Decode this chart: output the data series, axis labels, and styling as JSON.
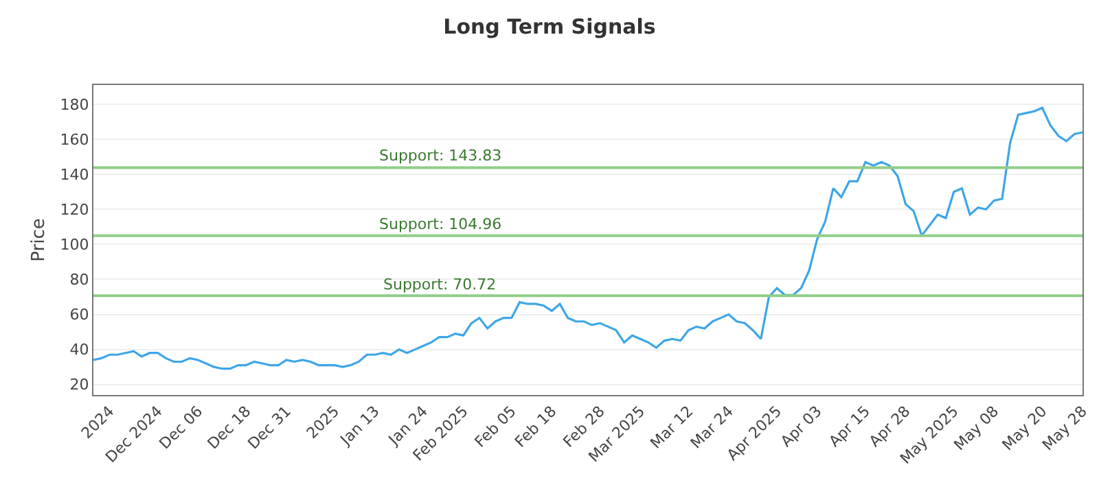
{
  "chart_data": {
    "type": "line",
    "title": "Long Term Signals",
    "ylabel": "Price",
    "categories": [
      null,
      null,
      "2024",
      null,
      null,
      null,
      null,
      null,
      "Dec 2024",
      null,
      null,
      null,
      null,
      "Dec 06",
      null,
      null,
      null,
      null,
      null,
      "Dec 18",
      null,
      null,
      null,
      null,
      "Dec 31",
      null,
      null,
      null,
      null,
      null,
      "2025",
      null,
      null,
      null,
      null,
      "Jan 13",
      null,
      null,
      null,
      null,
      null,
      "Jan 24",
      null,
      null,
      null,
      null,
      "Feb 2025",
      null,
      null,
      null,
      null,
      null,
      "Feb 05",
      null,
      null,
      null,
      null,
      "Feb 18",
      null,
      null,
      null,
      null,
      null,
      "Feb 28",
      null,
      null,
      null,
      null,
      "Mar 2025",
      null,
      null,
      null,
      null,
      null,
      "Mar 12",
      null,
      null,
      null,
      null,
      "Mar 24",
      null,
      null,
      null,
      null,
      null,
      "Apr 2025",
      null,
      null,
      null,
      null,
      "Apr 03",
      null,
      null,
      null,
      null,
      null,
      "Apr 15",
      null,
      null,
      null,
      null,
      "Apr 28",
      null,
      null,
      null,
      null,
      null,
      "May 2025",
      null,
      null,
      null,
      null,
      "May 08",
      null,
      null,
      null,
      null,
      null,
      "May 20",
      null,
      null,
      null,
      null,
      "May 28"
    ],
    "series": [
      {
        "color": "#3ea6e8",
        "values": [
          34,
          35,
          37,
          37,
          38,
          39,
          36,
          38,
          38,
          35,
          33,
          33,
          35,
          34,
          32,
          30,
          29,
          29,
          31,
          31,
          33,
          32,
          31,
          31,
          34,
          33,
          34,
          33,
          31,
          31,
          31,
          30,
          31,
          33,
          37,
          37,
          38,
          37,
          40,
          38,
          40,
          42,
          44,
          47,
          47,
          49,
          48,
          55,
          58,
          52,
          56,
          58,
          58,
          67,
          66,
          66,
          65,
          62,
          66,
          58,
          56,
          56,
          54,
          55,
          53,
          51,
          44,
          48,
          46,
          44,
          41,
          45,
          46,
          45,
          51,
          53,
          52,
          56,
          58,
          60,
          56,
          55,
          51,
          46,
          70,
          75,
          71,
          71,
          75,
          85,
          103,
          113,
          132,
          127,
          136,
          136,
          147,
          145,
          147,
          145,
          139,
          123,
          119,
          105,
          111,
          117,
          115,
          130,
          132,
          117,
          121,
          120,
          125,
          126,
          158,
          174,
          175,
          176,
          178,
          168,
          162,
          159,
          163,
          164
        ]
      }
    ],
    "ylim": [
      14,
      191
    ],
    "yticks": [
      20,
      40,
      60,
      80,
      100,
      120,
      140,
      160,
      180
    ],
    "grid": "y",
    "marker": "none",
    "line_style": "solid",
    "ref_lines": [
      {
        "axis": "y",
        "value": 143.83,
        "label": "Support: 143.83",
        "color": "#8fce88"
      },
      {
        "axis": "y",
        "value": 104.96,
        "label": "Support: 104.96",
        "color": "#8fce88"
      },
      {
        "axis": "y",
        "value": 70.72,
        "label": "Support: 70.72",
        "color": "#8fce88"
      }
    ]
  }
}
